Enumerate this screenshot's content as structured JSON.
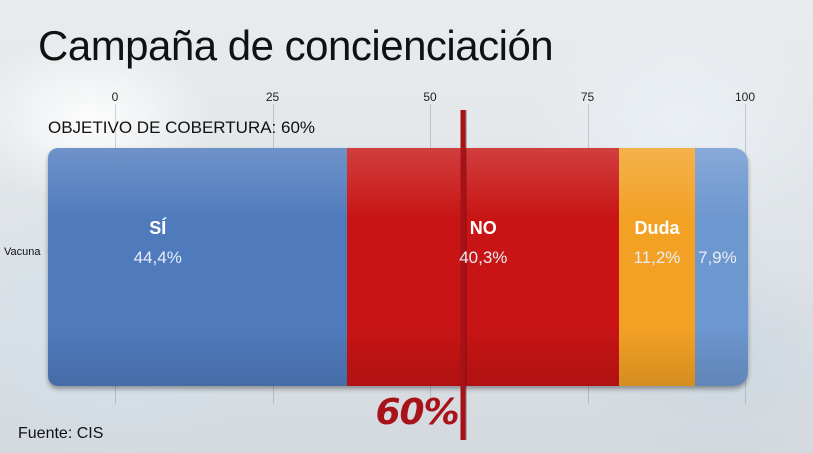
{
  "title": "Campaña de concienciación",
  "target_label": "OBJETIVO DE COBERTURA: 60%",
  "source": "Fuente: CIS",
  "target_marker_text": "60%",
  "chart_data": {
    "type": "bar",
    "orientation": "horizontal",
    "stacked": true,
    "categories": [
      "Vacuna"
    ],
    "xlim": [
      0,
      100
    ],
    "xticks": [
      0,
      25,
      50,
      75,
      100
    ],
    "grid": true,
    "target_line": 60,
    "series": [
      {
        "name": "SÍ",
        "values": [
          44.4
        ],
        "label": "44,4%",
        "color": "#4f7bbd"
      },
      {
        "name": "NO",
        "values": [
          40.3
        ],
        "label": "40,3%",
        "color": "#c81414"
      },
      {
        "name": "Duda",
        "values": [
          11.2
        ],
        "label": "11,2%",
        "color": "#f2a124"
      },
      {
        "name": "",
        "values": [
          7.9
        ],
        "label": "7,9%",
        "color": "#6d97cf"
      }
    ]
  }
}
